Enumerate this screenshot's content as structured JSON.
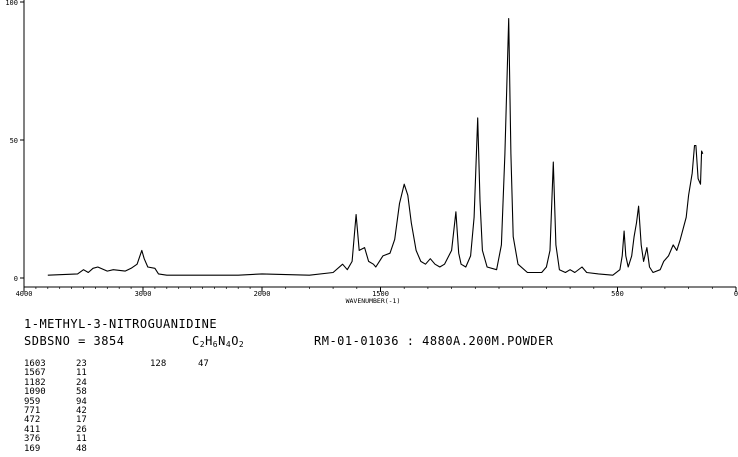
{
  "chart_data": {
    "type": "line",
    "xlabel": "WAVENUMBER(-1)",
    "xlim": [
      4000,
      0
    ],
    "ylim": [
      0,
      100
    ],
    "x_ticks": [
      "4000",
      "3000",
      "2000",
      "1500",
      "500",
      "0"
    ],
    "x_tick_values": [
      4000,
      3000,
      2000,
      1500,
      500,
      0
    ],
    "y_ticks": [
      "0",
      "50",
      "100"
    ],
    "y_tick_values": [
      0,
      50,
      100
    ],
    "grid": false,
    "series": [
      {
        "values": [
          [
            3800,
            1
          ],
          [
            3550,
            1.5
          ],
          [
            3500,
            3
          ],
          [
            3460,
            2
          ],
          [
            3420,
            3.5
          ],
          [
            3380,
            4
          ],
          [
            3300,
            2.5
          ],
          [
            3250,
            3
          ],
          [
            3150,
            2.5
          ],
          [
            3100,
            3.5
          ],
          [
            3050,
            5
          ],
          [
            3010,
            10
          ],
          [
            2990,
            7
          ],
          [
            2960,
            4
          ],
          [
            2900,
            3.5
          ],
          [
            2870,
            1.5
          ],
          [
            2800,
            1
          ],
          [
            2200,
            1
          ],
          [
            2000,
            1.5
          ],
          [
            1800,
            1
          ],
          [
            1700,
            2
          ],
          [
            1660,
            5
          ],
          [
            1640,
            3
          ],
          [
            1620,
            6
          ],
          [
            1603,
            23
          ],
          [
            1590,
            10
          ],
          [
            1567,
            11
          ],
          [
            1550,
            6
          ],
          [
            1530,
            5
          ],
          [
            1520,
            4
          ],
          [
            1490,
            8
          ],
          [
            1460,
            9
          ],
          [
            1440,
            14
          ],
          [
            1420,
            27
          ],
          [
            1400,
            34
          ],
          [
            1385,
            30
          ],
          [
            1370,
            20
          ],
          [
            1350,
            10
          ],
          [
            1330,
            6
          ],
          [
            1310,
            5
          ],
          [
            1290,
            7
          ],
          [
            1270,
            5
          ],
          [
            1250,
            4
          ],
          [
            1230,
            5
          ],
          [
            1200,
            10
          ],
          [
            1182,
            24
          ],
          [
            1170,
            9
          ],
          [
            1160,
            5
          ],
          [
            1140,
            4
          ],
          [
            1120,
            8
          ],
          [
            1105,
            22
          ],
          [
            1090,
            58
          ],
          [
            1080,
            28
          ],
          [
            1070,
            10
          ],
          [
            1050,
            4
          ],
          [
            1010,
            3
          ],
          [
            990,
            12
          ],
          [
            975,
            45
          ],
          [
            959,
            94
          ],
          [
            950,
            45
          ],
          [
            940,
            15
          ],
          [
            920,
            5
          ],
          [
            880,
            2
          ],
          [
            820,
            2
          ],
          [
            800,
            4
          ],
          [
            785,
            10
          ],
          [
            771,
            42
          ],
          [
            760,
            12
          ],
          [
            745,
            3
          ],
          [
            720,
            2
          ],
          [
            700,
            3
          ],
          [
            680,
            2
          ],
          [
            650,
            4
          ],
          [
            630,
            2
          ],
          [
            580,
            1.5
          ],
          [
            520,
            1
          ],
          [
            490,
            3
          ],
          [
            480,
            8
          ],
          [
            472,
            17
          ],
          [
            465,
            8
          ],
          [
            455,
            4
          ],
          [
            440,
            8
          ],
          [
            430,
            15
          ],
          [
            420,
            20
          ],
          [
            411,
            26
          ],
          [
            400,
            12
          ],
          [
            390,
            6
          ],
          [
            376,
            11
          ],
          [
            365,
            4
          ],
          [
            350,
            2
          ],
          [
            320,
            3
          ],
          [
            305,
            6
          ],
          [
            285,
            8
          ],
          [
            265,
            12
          ],
          [
            250,
            10
          ],
          [
            235,
            14
          ],
          [
            210,
            22
          ],
          [
            200,
            30
          ],
          [
            185,
            38
          ],
          [
            175,
            48
          ],
          [
            169,
            48
          ],
          [
            160,
            36
          ],
          [
            150,
            34
          ],
          [
            145,
            46
          ],
          [
            140,
            45
          ]
        ]
      }
    ]
  },
  "compound_name": "1-METHYL-3-NITROGUANIDINE",
  "sdbs_label": "SDBSNO = 3854",
  "formula": {
    "c": "C",
    "c_n": "2",
    "h": "H",
    "h_n": "6",
    "n": "N",
    "n_n": "4",
    "o": "O",
    "o_n": "2"
  },
  "sample_info": "RM-01-01036 : 4880A.200M.POWDER",
  "peak_table": [
    {
      "wavenumber": "1603",
      "intensity": "23",
      "wavenumber2": "128",
      "intensity2": "47"
    },
    {
      "wavenumber": "1567",
      "intensity": "11"
    },
    {
      "wavenumber": "1182",
      "intensity": "24"
    },
    {
      "wavenumber": "1090",
      "intensity": "58"
    },
    {
      "wavenumber": "959",
      "intensity": "94"
    },
    {
      "wavenumber": "771",
      "intensity": "42"
    },
    {
      "wavenumber": "472",
      "intensity": "17"
    },
    {
      "wavenumber": "411",
      "intensity": "26"
    },
    {
      "wavenumber": "376",
      "intensity": "11"
    },
    {
      "wavenumber": "169",
      "intensity": "48"
    }
  ]
}
